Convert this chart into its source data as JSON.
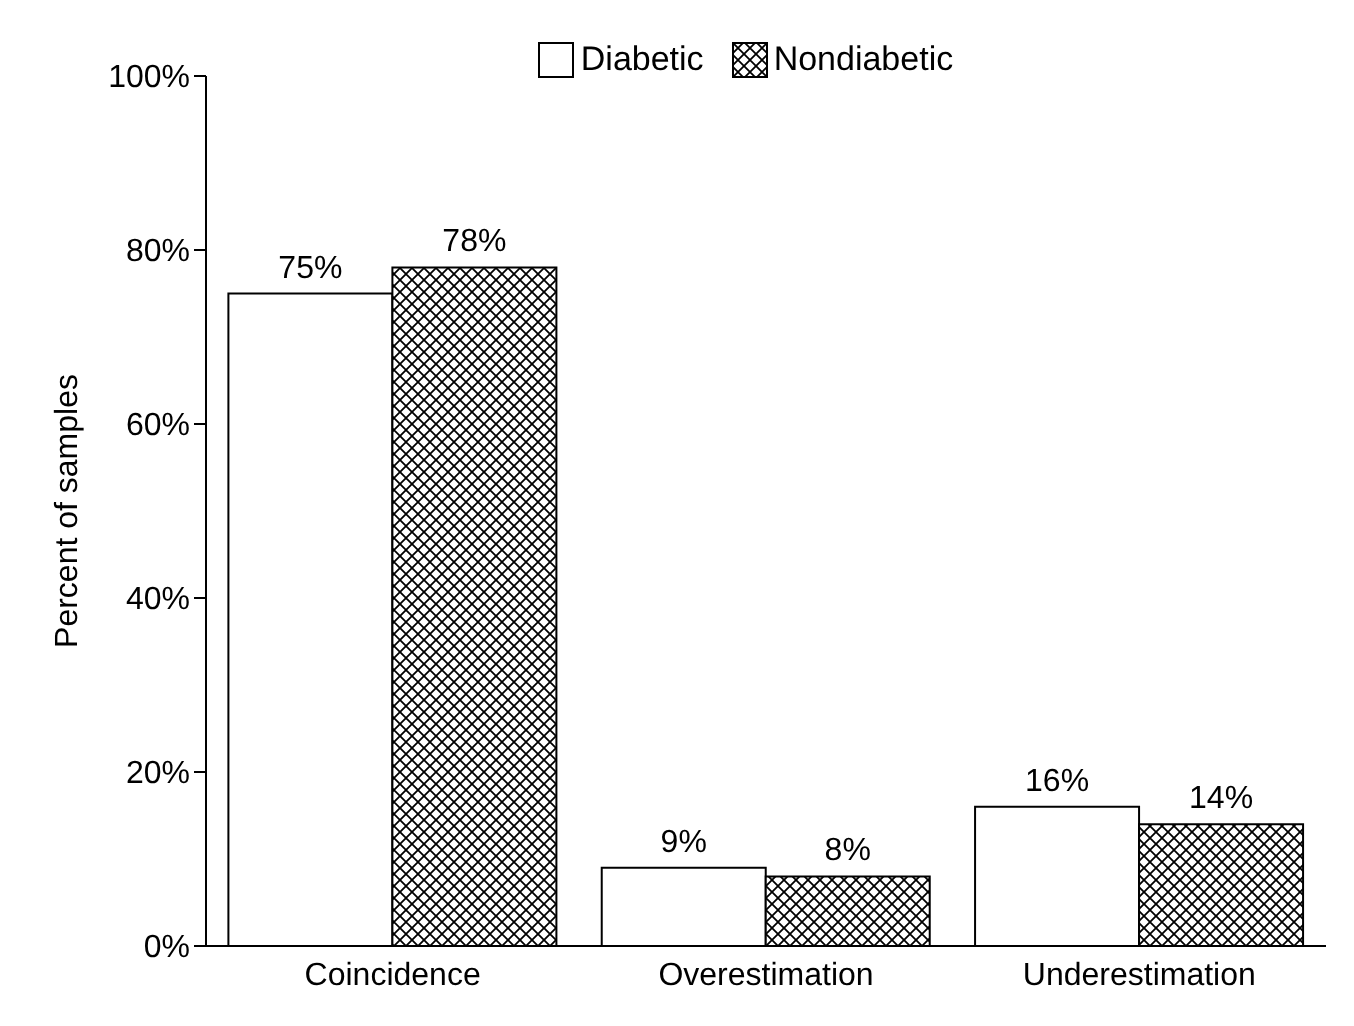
{
  "chart_data": {
    "type": "bar",
    "ylabel": "Percent of samples",
    "categories": [
      "Coincidence",
      "Overestimation",
      "Underestimation"
    ],
    "series": [
      {
        "name": "Diabetic",
        "color": "#ffffff",
        "values": [
          75,
          9,
          16
        ],
        "value_labels": [
          "75%",
          "9%",
          "16%"
        ]
      },
      {
        "name": "Nondiabetic",
        "color": "#000000",
        "values": [
          78,
          8,
          14
        ],
        "value_labels": [
          "78%",
          "8%",
          "14%"
        ]
      }
    ],
    "ylim": [
      0,
      100
    ],
    "yticks": [
      {
        "value": 0,
        "label": "0%"
      },
      {
        "value": 20,
        "label": "20%"
      },
      {
        "value": 40,
        "label": "40%"
      },
      {
        "value": 60,
        "label": "60%"
      },
      {
        "value": 80,
        "label": "80%"
      },
      {
        "value": 100,
        "label": "100%"
      }
    ],
    "legend": "top",
    "grid": false
  }
}
